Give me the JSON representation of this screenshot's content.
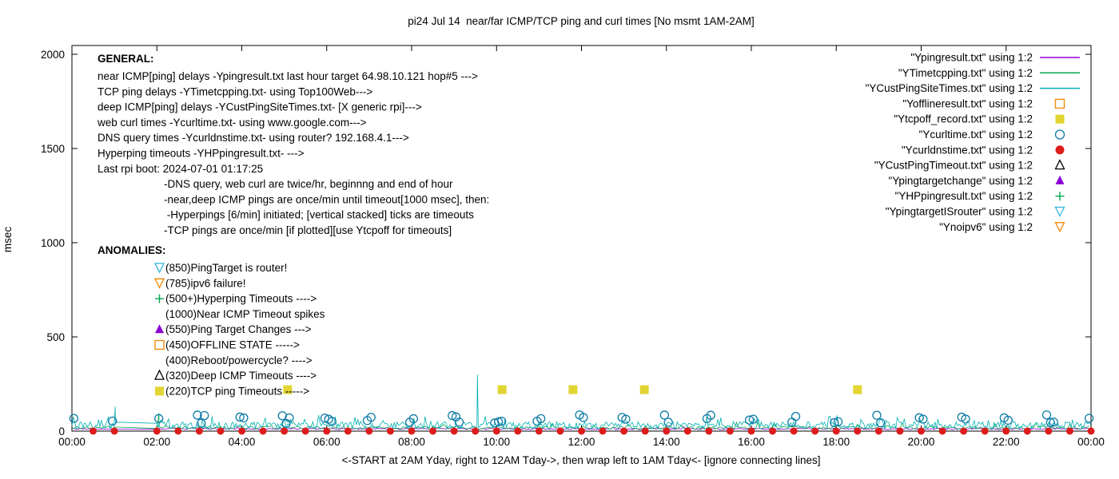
{
  "title": "pi24 Jul 14  near/far ICMP/TCP ping and curl times [No msmt 1AM-2AM]",
  "axes": {
    "ylabel": "msec",
    "xlabel": "<-START at 2AM Yday, right to 12AM Tday->, then wrap left to 1AM Tday<- [ignore connecting lines]",
    "ylim": [
      0,
      2000
    ],
    "yticks": [
      0,
      500,
      1000,
      1500,
      2000
    ],
    "xtick_hours": [
      0,
      2,
      4,
      6,
      8,
      10,
      12,
      14,
      16,
      18,
      20,
      22,
      24
    ],
    "xtick_labels": [
      "00:00",
      "02:00",
      "04:00",
      "06:00",
      "08:00",
      "10:00",
      "12:00",
      "14:00",
      "16:00",
      "18:00",
      "20:00",
      "22:00",
      "00:00"
    ]
  },
  "legend": [
    {
      "label": "\"Ypingresult.txt\" using 1:2",
      "style": "line",
      "color": "#9400d3"
    },
    {
      "label": "\"YTimetcpping.txt\" using 1:2",
      "style": "line",
      "color": "#00a651"
    },
    {
      "label": "\"YCustPingSiteTimes.txt\" using 1:2",
      "style": "line",
      "color": "#00b0b0"
    },
    {
      "label": "\"Yofflineresult.txt\" using 1:2",
      "style": "square-open",
      "color": "#ee8800"
    },
    {
      "label": "\"Ytcpoff_record.txt\" using 1:2",
      "style": "square-filled",
      "color": "#e2d532"
    },
    {
      "label": "\"Ycurltime.txt\" using 1:2",
      "style": "circle-open",
      "color": "#0f7ca6"
    },
    {
      "label": "\"Ycurldnstime.txt\" using 1:2",
      "style": "circle-filled",
      "color": "#dd1c1c"
    },
    {
      "label": "\"YCustPingTimeout.txt\" using 1:2",
      "style": "triangle-up-open",
      "color": "#000000"
    },
    {
      "label": "\"Ypingtargetchange\" using 1:2",
      "style": "triangle-up-filled",
      "color": "#8a00d4"
    },
    {
      "label": "\"YHPpingresult.txt\" using 1:2",
      "style": "plus",
      "color": "#00a651"
    },
    {
      "label": "\"YpingtargetISrouter\" using 1:2",
      "style": "triangle-down-open",
      "color": "#2fb6d9"
    },
    {
      "label": "\"Ynoipv6\" using 1:2",
      "style": "triangle-down-open",
      "color": "#ee8800"
    }
  ],
  "general": {
    "heading": "GENERAL:",
    "lines": [
      {
        "text": "near ICMP[ping] delays -Ypingresult.txt last hour target 64.98.10.121 hop#5 --->",
        "indent": false
      },
      {
        "text": "TCP ping delays -YTimetcpping.txt- using Top100Web--->",
        "indent": false
      },
      {
        "text": "deep ICMP[ping] delays -YCustPingSiteTimes.txt- [X generic rpi]--->",
        "indent": false
      },
      {
        "text": "web curl times -Ycurltime.txt- using www.google.com--->",
        "indent": false
      },
      {
        "text": "DNS query times -Ycurldnstime.txt- using router? 192.168.4.1--->",
        "indent": false
      },
      {
        "text": "Hyperping timeouts -YHPpingresult.txt- --->",
        "indent": false
      },
      {
        "text": "Last rpi boot: 2024-07-01 01:17:25",
        "indent": false
      },
      {
        "text": "-DNS query, web curl are twice/hr, beginnng and end of hour",
        "indent": true
      },
      {
        "text": "-near,deep ICMP pings are once/min until timeout[1000 msec], then:",
        "indent": true
      },
      {
        "text": " -Hyperpings [6/min] initiated; [vertical stacked] ticks are timeouts",
        "indent": true
      },
      {
        "text": "-TCP pings are once/min [if plotted][use Ytcpoff for timeouts]",
        "indent": true
      }
    ]
  },
  "anomalies": {
    "heading": "ANOMALIES:",
    "items": [
      {
        "marker": "triangle-down-open",
        "color": "#2fb6d9",
        "text": "(850)PingTarget is router!"
      },
      {
        "marker": "triangle-down-open",
        "color": "#ee8800",
        "text": "(785)ipv6 failure!"
      },
      {
        "marker": "plus",
        "color": "#00a651",
        "text": "(500+)Hyperping Timeouts ---->"
      },
      {
        "marker": "none",
        "color": "#000000",
        "text": "(1000)Near ICMP Timeout spikes"
      },
      {
        "marker": "triangle-up-filled",
        "color": "#8a00d4",
        "text": "(550)Ping Target Changes --->"
      },
      {
        "marker": "square-open",
        "color": "#ee8800",
        "text": "(450)OFFLINE STATE ----->"
      },
      {
        "marker": "none",
        "color": "#000000",
        "text": "(400)Reboot/powercycle? ---->"
      },
      {
        "marker": "triangle-up-open",
        "color": "#000000",
        "text": "(320)Deep ICMP Timeouts ---->"
      },
      {
        "marker": "square-filled",
        "color": "#e2d532",
        "text": "(220)TCP ping Timeouts ----->"
      }
    ]
  },
  "chart_data": {
    "type": "line",
    "title": "pi24 Jul 14  near/far ICMP/TCP ping and curl times [No msmt 1AM-2AM]",
    "xlabel": "<-START at 2AM Yday, right to 12AM Tday->, then wrap left to 1AM Tday<- [ignore connecting lines]",
    "ylabel": "msec",
    "ylim": [
      0,
      2000
    ],
    "x_range_hours": [
      0,
      24
    ],
    "no_measurement_gap_hours": [
      1.03,
      1.97
    ],
    "rng_seed": 42,
    "series": [
      {
        "name": "Ypingresult.txt",
        "color": "#9400d3",
        "base": 8,
        "jitter": 8,
        "spike_prob": 0.02,
        "spike_amp": 12,
        "step_hours": 0.05,
        "spikes": []
      },
      {
        "name": "YTimetcpping.txt",
        "color": "#00a651",
        "base": 10,
        "jitter": 16,
        "spike_prob": 0.05,
        "spike_amp": 28,
        "step_hours": 0.05,
        "spikes": [
          [
            2.05,
            95
          ]
        ]
      },
      {
        "name": "YCustPingSiteTimes.txt",
        "color": "#00b0b0",
        "base": 12,
        "jitter": 38,
        "spike_prob": 0.1,
        "spike_amp": 45,
        "step_hours": 0.033,
        "spikes": [
          [
            1.02,
            130
          ],
          [
            9.55,
            300
          ]
        ]
      }
    ],
    "markers": [
      {
        "name": "Ycurldnstime.txt",
        "shape": "circle-filled",
        "color": "#dd1c1c",
        "size": 4.5,
        "gen": "interval",
        "start": 0.5,
        "step": 0.5,
        "end": 24,
        "y": 0
      },
      {
        "name": "Ycurltime.txt",
        "shape": "circle-open",
        "color": "#0f7ca6",
        "size": 5,
        "gen": "hourly-pairs",
        "offset": 0.045,
        "ymin": 40,
        "ymax": 88,
        "extra_prob": 0.35
      },
      {
        "name": "Ytcpoff_record.txt",
        "shape": "square-filled",
        "color": "#e2d532",
        "size": 5.5,
        "points": [
          [
            5.08,
            220
          ],
          [
            10.13,
            220
          ],
          [
            11.8,
            220
          ],
          [
            13.48,
            220
          ],
          [
            18.5,
            220
          ]
        ]
      }
    ]
  }
}
